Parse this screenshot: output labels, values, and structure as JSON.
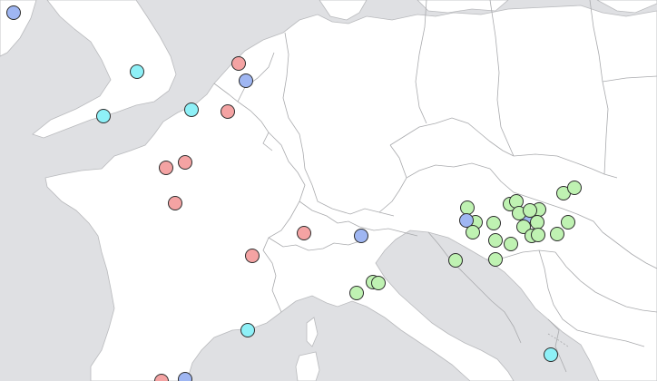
{
  "map": {
    "colors": {
      "sea": "#dfe0e3",
      "land": "#ffffff",
      "border": "#a9aaad"
    },
    "legend_colors": {
      "red": "#f4a3a3",
      "blue": "#9fb6f2",
      "cyan": "#8ef0f7",
      "green": "#bff2b2"
    },
    "markers": [
      {
        "id": "m1",
        "color": "blue"
      },
      {
        "id": "m2",
        "color": "cyan"
      },
      {
        "id": "m3",
        "color": "red"
      },
      {
        "id": "m4",
        "color": "blue"
      },
      {
        "id": "m5",
        "color": "cyan"
      },
      {
        "id": "m6",
        "color": "cyan"
      },
      {
        "id": "m7",
        "color": "red"
      },
      {
        "id": "m8",
        "color": "red"
      },
      {
        "id": "m9",
        "color": "red"
      },
      {
        "id": "m10",
        "color": "red"
      },
      {
        "id": "m11",
        "color": "red"
      },
      {
        "id": "m12",
        "color": "red"
      },
      {
        "id": "m13",
        "color": "blue"
      },
      {
        "id": "m14",
        "color": "green"
      },
      {
        "id": "m15",
        "color": "green"
      },
      {
        "id": "m16",
        "color": "green"
      },
      {
        "id": "m17",
        "color": "cyan"
      },
      {
        "id": "m18",
        "color": "red"
      },
      {
        "id": "m19",
        "color": "blue"
      },
      {
        "id": "m20",
        "color": "green"
      },
      {
        "id": "m21",
        "color": "green"
      },
      {
        "id": "m22",
        "color": "green"
      },
      {
        "id": "m23",
        "color": "blue"
      },
      {
        "id": "m24",
        "color": "green"
      },
      {
        "id": "m25",
        "color": "green"
      },
      {
        "id": "m26",
        "color": "green"
      },
      {
        "id": "m27",
        "color": "green"
      },
      {
        "id": "m28",
        "color": "green"
      },
      {
        "id": "m29",
        "color": "green"
      },
      {
        "id": "m30",
        "color": "green"
      },
      {
        "id": "m31",
        "color": "blue"
      },
      {
        "id": "m32",
        "color": "green"
      },
      {
        "id": "m33",
        "color": "green"
      },
      {
        "id": "m34",
        "color": "green"
      },
      {
        "id": "m35",
        "color": "green"
      },
      {
        "id": "m36",
        "color": "green"
      },
      {
        "id": "m37",
        "color": "green"
      },
      {
        "id": "m38",
        "color": "green"
      },
      {
        "id": "m39",
        "color": "green"
      },
      {
        "id": "m40",
        "color": "green"
      },
      {
        "id": "m41",
        "color": "green"
      },
      {
        "id": "m42",
        "color": "green"
      },
      {
        "id": "m43",
        "color": "cyan"
      }
    ]
  }
}
